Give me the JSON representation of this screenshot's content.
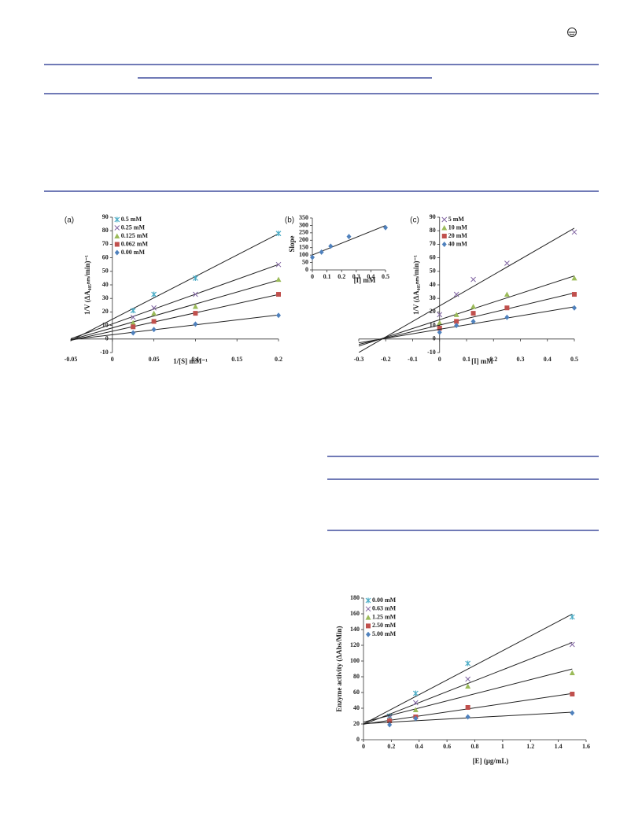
{
  "chart_data": [
    {
      "type": "scatter",
      "label": "(a)",
      "xlabel": "1/[S] mM⁻¹",
      "ylabel": "1/V (ΔA₄₀₅ₙₘ/min)⁻¹",
      "x": [
        0.025,
        0.05,
        0.1,
        0.2
      ],
      "series": [
        {
          "name": "0.5 mM",
          "color": "#4bacc6",
          "marker": "asterisk",
          "values": [
            21,
            33,
            45,
            78
          ]
        },
        {
          "name": "0.25 mM",
          "color": "#8064a2",
          "marker": "x",
          "values": [
            16,
            23,
            33,
            55
          ]
        },
        {
          "name": "0.125 mM",
          "color": "#9bbb59",
          "marker": "triangle",
          "values": [
            12,
            19,
            24,
            44
          ]
        },
        {
          "name": "0.062 mM",
          "color": "#c0504d",
          "marker": "square",
          "values": [
            9,
            13,
            19,
            33
          ]
        },
        {
          "name": "0.00 mM",
          "color": "#4f81bd",
          "marker": "diamond",
          "values": [
            4.5,
            7,
            11,
            17.5
          ]
        }
      ],
      "xlim": [
        -0.05,
        0.2
      ],
      "ylim": [
        -10,
        90
      ],
      "xticks": [
        -0.05,
        0,
        0.05,
        0.1,
        0.15,
        0.2
      ],
      "yticks": [
        -10,
        0,
        10,
        20,
        30,
        40,
        50,
        60,
        70,
        80,
        90
      ],
      "trendline": true,
      "legend": "top-left"
    },
    {
      "type": "scatter",
      "label": "(b)",
      "xlabel": "[I] mM",
      "ylabel": "Slope",
      "x": [
        0,
        0.0625,
        0.125,
        0.25,
        0.5
      ],
      "series": [
        {
          "color": "#4f81bd",
          "marker": "diamond",
          "values": [
            85,
            120,
            160,
            225,
            285
          ]
        }
      ],
      "xlim": [
        0,
        0.5
      ],
      "ylim": [
        0,
        350
      ],
      "xticks": [
        0,
        0.1,
        0.2,
        0.3,
        0.4,
        0.5
      ],
      "yticks": [
        0,
        50,
        100,
        150,
        200,
        250,
        300,
        350
      ],
      "trendline": true
    },
    {
      "type": "scatter",
      "label": "(c)",
      "xlabel": "[I] mM",
      "ylabel": "1/V (ΔA₄₀₅ₙₘ/min)⁻¹",
      "x": [
        0,
        0.0625,
        0.125,
        0.25,
        0.5
      ],
      "series": [
        {
          "name": "5 mM",
          "color": "#8064a2",
          "marker": "x",
          "values": [
            18,
            33,
            44,
            56,
            79
          ]
        },
        {
          "name": "10 mM",
          "color": "#9bbb59",
          "marker": "triangle",
          "values": [
            12,
            18,
            24,
            33,
            45
          ]
        },
        {
          "name": "20 mM",
          "color": "#c0504d",
          "marker": "square",
          "values": [
            8,
            13,
            19,
            23,
            33
          ]
        },
        {
          "name": "40 mM",
          "color": "#4f81bd",
          "marker": "diamond",
          "values": [
            5,
            10,
            13,
            16,
            23
          ]
        }
      ],
      "xlim": [
        -0.3,
        0.5
      ],
      "ylim": [
        -10,
        90
      ],
      "xticks": [
        -0.3,
        -0.2,
        -0.1,
        0,
        0.1,
        0.2,
        0.3,
        0.4,
        0.5
      ],
      "yticks": [
        -10,
        0,
        10,
        20,
        30,
        40,
        50,
        60,
        70,
        80,
        90
      ],
      "trendline": true,
      "legend": "top-left"
    },
    {
      "type": "scatter",
      "xlabel": "[E] (μg/mL)",
      "ylabel": "Enzyme activity (ΔAbs/Min)",
      "x": [
        0.1875,
        0.375,
        0.75,
        1.5
      ],
      "series": [
        {
          "name": "0.00 mM",
          "color": "#4bacc6",
          "marker": "asterisk",
          "values": [
            30,
            59,
            97,
            156
          ]
        },
        {
          "name": "0.63 mM",
          "color": "#8064a2",
          "marker": "x",
          "values": [
            28,
            47,
            77,
            121
          ]
        },
        {
          "name": "1.25 mM",
          "color": "#9bbb59",
          "marker": "triangle",
          "values": [
            25,
            38,
            68,
            85
          ]
        },
        {
          "name": "2.50 mM",
          "color": "#c0504d",
          "marker": "square",
          "values": [
            24,
            29,
            41,
            58
          ]
        },
        {
          "name": "5.00 mM",
          "color": "#4f81bd",
          "marker": "diamond",
          "values": [
            19,
            27,
            29,
            34
          ]
        }
      ],
      "xlim": [
        0,
        1.6
      ],
      "ylim": [
        0,
        180
      ],
      "xticks": [
        0,
        0.2,
        0.4,
        0.6,
        0.8,
        1,
        1.2,
        1.4,
        1.6
      ],
      "yticks": [
        0,
        20,
        40,
        60,
        80,
        100,
        120,
        140,
        160,
        180
      ],
      "trendline": true,
      "legend": "top-left"
    }
  ]
}
